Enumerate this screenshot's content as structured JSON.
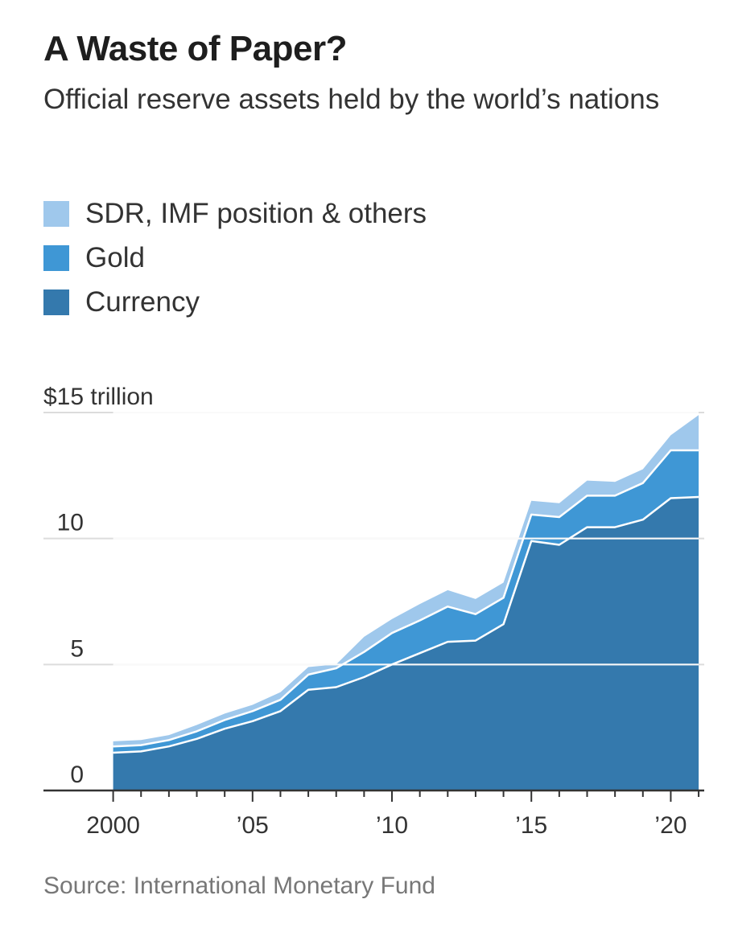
{
  "title": "A Waste of Paper?",
  "subtitle": "Official reserve assets held by the world’s nations",
  "source": "Source: International Monetary Fund",
  "chart_data": {
    "type": "area",
    "stacked": true,
    "x": [
      2000,
      2001,
      2002,
      2003,
      2004,
      2005,
      2006,
      2007,
      2008,
      2009,
      2010,
      2011,
      2012,
      2013,
      2014,
      2015,
      2016,
      2017,
      2018,
      2019,
      2020,
      2021
    ],
    "x_tick_values": [
      2000,
      2005,
      2010,
      2015,
      2020
    ],
    "x_tick_labels": [
      "2000",
      "’05",
      "’10",
      "’15",
      "’20"
    ],
    "y_tick_values": [
      0,
      5,
      10,
      15
    ],
    "y_tick_labels": [
      "0",
      "5",
      "10",
      "$15 trillion"
    ],
    "ylim": [
      0,
      15
    ],
    "xlim": [
      1997.5,
      2021.2
    ],
    "grid": true,
    "legend_position": "top-left",
    "series": [
      {
        "name": "Currency",
        "color": "#3479ad",
        "values": [
          1.5,
          1.55,
          1.75,
          2.05,
          2.45,
          2.75,
          3.15,
          4.0,
          4.1,
          4.5,
          5.0,
          5.45,
          5.9,
          5.95,
          6.6,
          9.9,
          9.75,
          10.45,
          10.45,
          10.75,
          11.6,
          11.65
        ]
      },
      {
        "name": "Gold",
        "color": "#3f97d5",
        "values": [
          0.25,
          0.25,
          0.25,
          0.3,
          0.35,
          0.4,
          0.45,
          0.6,
          0.75,
          1.0,
          1.25,
          1.3,
          1.4,
          1.05,
          1.05,
          1.05,
          1.1,
          1.25,
          1.25,
          1.45,
          1.9,
          1.85
        ]
      },
      {
        "name": "SDR, IMF position & others",
        "color": "#9fc8ec",
        "values": [
          0.2,
          0.2,
          0.2,
          0.25,
          0.25,
          0.25,
          0.3,
          0.3,
          0.15,
          0.6,
          0.55,
          0.65,
          0.65,
          0.6,
          0.6,
          0.55,
          0.55,
          0.6,
          0.55,
          0.55,
          0.6,
          1.4
        ]
      }
    ]
  }
}
